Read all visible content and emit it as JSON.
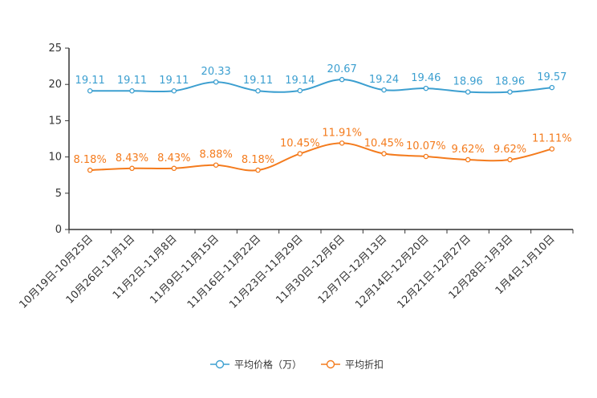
{
  "chart_data": {
    "type": "line",
    "categories": [
      "10月19日-10月25日",
      "10月26日-11月1日",
      "11月2日-11月8日",
      "11月9日-11月15日",
      "11月16日-11月22日",
      "11月23日-11月29日",
      "11月30日-12月6日",
      "12月7日-12月13日",
      "12月14日-12月20日",
      "12月21日-12月27日",
      "12月28日-1月3日",
      "1月4日-1月10日"
    ],
    "series": [
      {
        "name": "平均价格（万）",
        "color": "#3c9fd0",
        "values": [
          19.11,
          19.11,
          19.11,
          20.33,
          19.11,
          19.14,
          20.67,
          19.24,
          19.46,
          18.96,
          18.96,
          19.57
        ],
        "labels": [
          "19.11",
          "19.11",
          "19.11",
          "20.33",
          "19.11",
          "19.14",
          "20.67",
          "19.24",
          "19.46",
          "18.96",
          "18.96",
          "19.57"
        ]
      },
      {
        "name": "平均折扣",
        "color": "#f47b1d",
        "values": [
          8.18,
          8.43,
          8.43,
          8.88,
          8.18,
          10.45,
          11.91,
          10.45,
          10.07,
          9.62,
          9.62,
          11.11
        ],
        "labels": [
          "8.18%",
          "8.43%",
          "8.43%",
          "8.88%",
          "8.18%",
          "10.45%",
          "11.91%",
          "10.45%",
          "10.07%",
          "9.62%",
          "9.62%",
          "11.11%"
        ]
      }
    ],
    "yticks": [
      "0",
      "5",
      "10",
      "15",
      "20",
      "25"
    ],
    "ylim": [
      0,
      25
    ],
    "grid": false,
    "legend": "bottom-center",
    "title": "",
    "xlabel": "",
    "ylabel": ""
  }
}
